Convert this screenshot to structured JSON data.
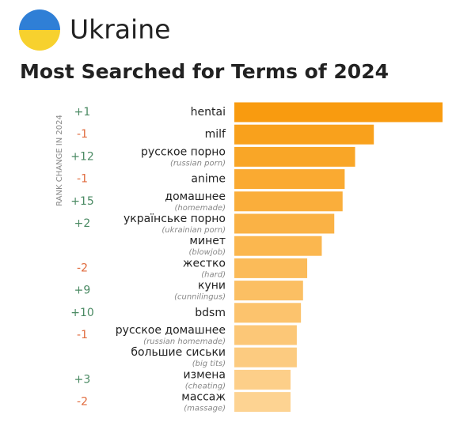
{
  "chart_data": {
    "type": "bar",
    "orientation": "horizontal",
    "country": "Ukraine",
    "title": "Most Searched for Terms of 2024",
    "rank_change_label": "RANK CHANGE IN 2024",
    "categories": [
      "hentai",
      "milf",
      "русское порно",
      "anime",
      "домашнее",
      "українське порно",
      "минет",
      "жестко",
      "куни",
      "bdsm",
      "русское домашнее",
      "большие сиськи",
      "измена",
      "массаж"
    ],
    "translations": [
      null,
      null,
      "(russian porn)",
      null,
      "(homemade)",
      "(ukrainian porn)",
      "(blowjob)",
      "(hard)",
      "(cunnilingus)",
      null,
      "(russian homemade)",
      "(big tits)",
      "(cheating)",
      "(massage)"
    ],
    "rank_changes": [
      "+1",
      "-1",
      "+12",
      "-1",
      "+15",
      "+2",
      null,
      "-2",
      "+9",
      "+10",
      "-1",
      null,
      "+3",
      "-2"
    ],
    "values": [
      100,
      67,
      58,
      53,
      52,
      48,
      42,
      35,
      33,
      32,
      30,
      30,
      27,
      27
    ],
    "colors": [
      "#f99b0f",
      "#f9a11c",
      "#f9a627",
      "#faaa31",
      "#faae3b",
      "#fab245",
      "#fbb74f",
      "#fbbb59",
      "#fbbf63",
      "#fcc36d",
      "#fcc777",
      "#fccb80",
      "#fdcf89",
      "#fdd392"
    ],
    "rank_colors": {
      "up": "#4a8a63",
      "down": "#e06a3c"
    }
  }
}
